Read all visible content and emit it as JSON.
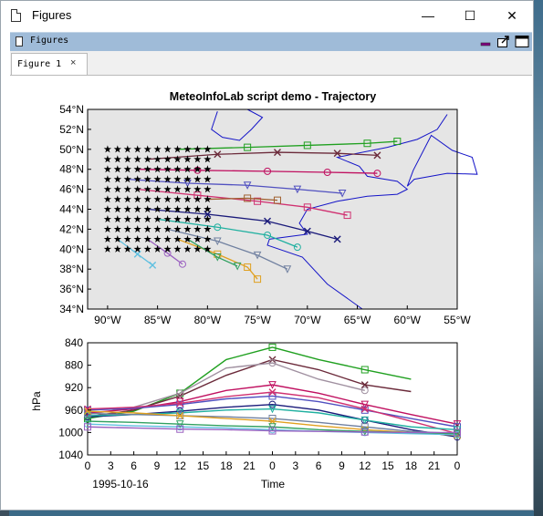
{
  "window": {
    "title": "Figures",
    "minimize": "—",
    "maximize": "☐",
    "close": "✕"
  },
  "dock": {
    "title": "Figures"
  },
  "tabs": [
    {
      "label": "Figure 1",
      "close": "×"
    }
  ],
  "colors": {
    "map_bg": "#e5e5e5",
    "coast": "#1414c8",
    "start_marker": "#000000"
  },
  "map": {
    "title": "MeteoInfoLab script demo - Trajectory",
    "xticks": [
      "90°W",
      "85°W",
      "80°W",
      "75°W",
      "70°W",
      "65°W",
      "60°W",
      "55°W"
    ],
    "yticks": [
      "54°N",
      "52°N",
      "50°N",
      "48°N",
      "46°N",
      "44°N",
      "42°N",
      "40°N",
      "38°N",
      "36°N",
      "34°N"
    ]
  },
  "profile": {
    "ylabel": "hPa",
    "xlabel": "Time",
    "date_label": "1995-10-16",
    "yticks": [
      "840",
      "880",
      "920",
      "960",
      "1000",
      "1040"
    ],
    "xticks": [
      "0",
      "3",
      "6",
      "9",
      "12",
      "15",
      "18",
      "21",
      "0",
      "3",
      "6",
      "9",
      "12",
      "15",
      "18",
      "21",
      "0"
    ]
  },
  "chart_data": [
    {
      "type": "scatter",
      "title": "MeteoInfoLab script demo - Trajectory",
      "xlim": [
        -92,
        -55
      ],
      "ylim": [
        34,
        54
      ],
      "start_grid": {
        "lon_from": -90,
        "lon_to": -80,
        "lat_from": 40,
        "lat_to": 50,
        "step": 1
      },
      "series": [
        {
          "color": "#20a020",
          "lon": [
            -83,
            -76,
            -70,
            -64,
            -61
          ],
          "lat": [
            50,
            50.2,
            50.4,
            50.6,
            50.8
          ]
        },
        {
          "color": "#6b2a3a",
          "lon": [
            -86,
            -79,
            -73,
            -67,
            -63
          ],
          "lat": [
            49,
            49.5,
            49.7,
            49.6,
            49.4
          ]
        },
        {
          "color": "#c01060",
          "lon": [
            -87,
            -81,
            -74,
            -68,
            -63
          ],
          "lat": [
            48,
            47.9,
            47.8,
            47.7,
            47.6
          ]
        },
        {
          "color": "#5050c0",
          "lon": [
            -88,
            -82,
            -76,
            -71,
            -66.5
          ],
          "lat": [
            47,
            46.6,
            46.4,
            46,
            45.6
          ]
        },
        {
          "color": "#d03070",
          "lon": [
            -87,
            -81,
            -75,
            -70,
            -66
          ],
          "lat": [
            46,
            45.4,
            44.8,
            44.2,
            43.4
          ]
        },
        {
          "color": "#1a1a7a",
          "lon": [
            -86,
            -80,
            -74,
            -70,
            -67
          ],
          "lat": [
            44,
            43.5,
            42.8,
            41.8,
            41
          ]
        },
        {
          "color": "#20b0a0",
          "lon": [
            -85,
            -79,
            -74,
            -71
          ],
          "lat": [
            43,
            42.2,
            41.4,
            40.2
          ]
        },
        {
          "color": "#7080a0",
          "lon": [
            -84,
            -79,
            -75,
            -72
          ],
          "lat": [
            42,
            40.8,
            39.4,
            38
          ]
        },
        {
          "color": "#e0a020",
          "lon": [
            -83,
            -79,
            -76,
            -75
          ],
          "lat": [
            41,
            39.5,
            38.2,
            37
          ]
        },
        {
          "color": "#60c0e0",
          "lon": [
            -89,
            -87,
            -85.5
          ],
          "lat": [
            41,
            39.5,
            38.4
          ]
        },
        {
          "color": "#9a60c0",
          "lon": [
            -86,
            -84,
            -82.5
          ],
          "lat": [
            41,
            39.6,
            38.5
          ]
        },
        {
          "color": "#30a060",
          "lon": [
            -82,
            -79,
            -77
          ],
          "lat": [
            41,
            39.2,
            38.3
          ]
        },
        {
          "color": "#a06030",
          "lon": [
            -80,
            -76,
            -73
          ],
          "lat": [
            45,
            45.1,
            44.9
          ]
        }
      ]
    },
    {
      "type": "line",
      "ylabel": "hPa",
      "xlabel": "Time",
      "ylim": [
        1040,
        840
      ],
      "x_hours": [
        0,
        6,
        12,
        18,
        24,
        30,
        36,
        42,
        48
      ],
      "series": [
        {
          "color": "#20a020",
          "hpa": [
            975,
            962,
            930,
            870,
            848,
            870,
            888,
            905
          ]
        },
        {
          "color": "#6b2a3a",
          "hpa": [
            972,
            960,
            935,
            898,
            870,
            888,
            915,
            927
          ]
        },
        {
          "color": "#a090a0",
          "hpa": [
            968,
            955,
            930,
            885,
            876,
            905,
            925
          ]
        },
        {
          "color": "#c01060",
          "hpa": [
            965,
            958,
            945,
            925,
            915,
            930,
            950,
            968,
            985
          ]
        },
        {
          "color": "#5050c0",
          "hpa": [
            960,
            957,
            950,
            940,
            935,
            945,
            960,
            975,
            990
          ]
        },
        {
          "color": "#d03070",
          "hpa": [
            958,
            955,
            948,
            936,
            928,
            938,
            958,
            980,
            1002
          ]
        },
        {
          "color": "#1a1a7a",
          "hpa": [
            972,
            968,
            962,
            955,
            950,
            960,
            978,
            995,
            1008
          ]
        },
        {
          "color": "#20b0a0",
          "hpa": [
            970,
            968,
            965,
            960,
            958,
            965,
            978,
            990,
            995
          ]
        },
        {
          "color": "#7080a0",
          "hpa": [
            966,
            968,
            970,
            972,
            975,
            982,
            990,
            998,
            1002
          ]
        },
        {
          "color": "#e0a020",
          "hpa": [
            962,
            965,
            970,
            975,
            980,
            988,
            995,
            1000,
            1005
          ]
        },
        {
          "color": "#60c0e0",
          "hpa": [
            985,
            988,
            990,
            992,
            995,
            998,
            1000,
            1002,
            1004
          ]
        },
        {
          "color": "#30a060",
          "hpa": [
            980,
            982,
            985,
            988,
            990,
            995,
            998,
            1000,
            1002
          ]
        },
        {
          "color": "#9a60c0",
          "hpa": [
            990,
            992,
            994,
            995,
            997,
            998,
            999,
            1000,
            1000
          ]
        }
      ]
    }
  ]
}
